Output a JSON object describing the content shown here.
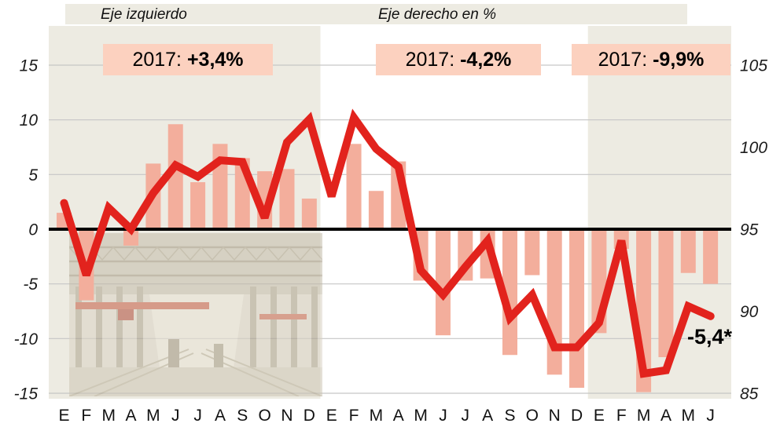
{
  "legend": {
    "left_label": "Eje izquierdo",
    "right_label": "Eje derecho en %"
  },
  "annotations": [
    {
      "prefix": "2017: ",
      "value": "+3,4%"
    },
    {
      "prefix": "2017: ",
      "value": "-4,2%"
    },
    {
      "prefix": "2017: ",
      "value": "-9,9%"
    }
  ],
  "background_image": {
    "name": "factory-interior-photo",
    "description": "faded photo of an industrial plant interior"
  },
  "colors": {
    "bar": "#f3ae9c",
    "line": "#e2231d",
    "band": "#edebe2",
    "grid": "#c6c6c6",
    "zero_line": "#000000",
    "annotation_box": "#fcd1bf",
    "text": "#111111"
  },
  "chart_data": {
    "type": "combo_bar_line",
    "title": "",
    "categories": [
      "E",
      "F",
      "M",
      "A",
      "M",
      "J",
      "J",
      "A",
      "S",
      "O",
      "N",
      "D",
      "E",
      "F",
      "M",
      "A",
      "M",
      "J",
      "J",
      "A",
      "S",
      "O",
      "N",
      "D",
      "E",
      "F",
      "M",
      "A",
      "M",
      "J"
    ],
    "series": [
      {
        "name": "Eje izquierdo",
        "type": "bar",
        "axis": "left",
        "values": [
          1.5,
          -6.5,
          0,
          -1.5,
          6.0,
          9.6,
          4.3,
          7.8,
          6.5,
          5.3,
          5.5,
          2.8,
          0,
          7.8,
          3.5,
          6.2,
          -4.7,
          -9.7,
          -4.7,
          -4.5,
          -11.5,
          -4.2,
          -13.3,
          -14.5,
          -9.5,
          -1.8,
          -14.9,
          -11.7,
          -4.0,
          -5.0
        ]
      },
      {
        "name": "Eje derecho en %",
        "type": "line",
        "axis": "right",
        "values": [
          96.6,
          92.2,
          96.3,
          95.0,
          97.2,
          98.9,
          98.2,
          99.2,
          99.1,
          95.7,
          100.3,
          101.7,
          97.0,
          101.8,
          99.9,
          98.8,
          92.5,
          91.0,
          92.7,
          94.3,
          89.6,
          91.0,
          87.8,
          87.8,
          89.3,
          94.3,
          86.2,
          86.4,
          90.3,
          89.7
        ]
      }
    ],
    "left_axis": {
      "ticks": [
        15,
        10,
        5,
        0,
        -5,
        -10,
        -15
      ],
      "range": [
        -15,
        15
      ]
    },
    "right_axis": {
      "ticks": [
        105,
        100,
        95,
        90,
        85
      ],
      "range": [
        85,
        105
      ]
    },
    "year_bands": [
      {
        "from": 0,
        "to": 11
      },
      {
        "from": 24,
        "to": 29
      }
    ],
    "grid": true,
    "legend_position": "top",
    "final_label": "-5,4*"
  }
}
